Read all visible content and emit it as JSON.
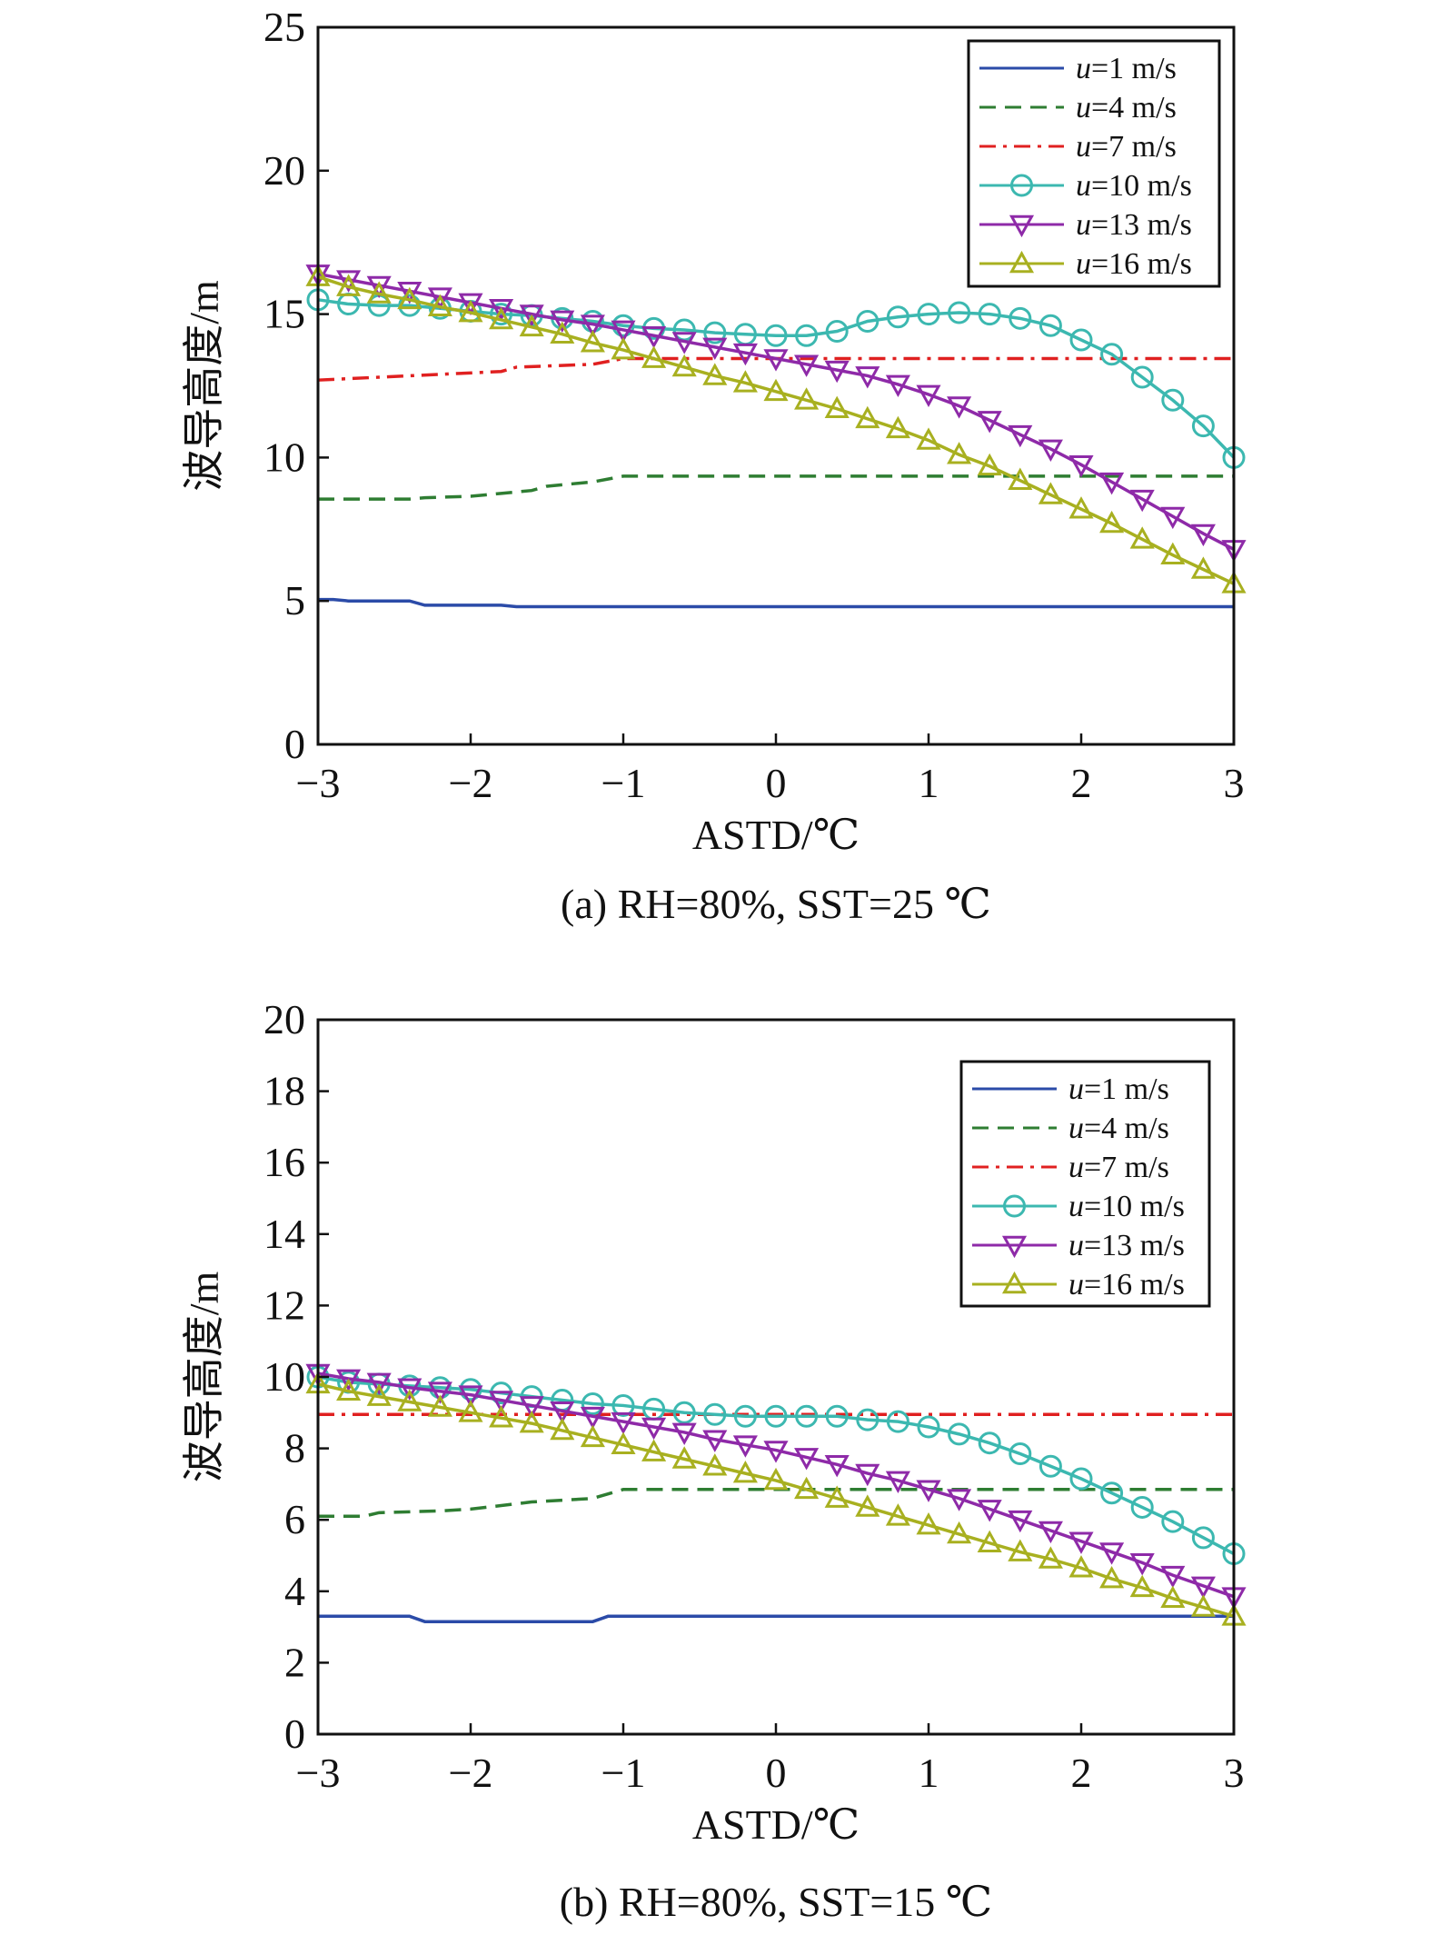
{
  "chart_data": [
    {
      "type": "line",
      "caption": "(a) RH=80%, SST=25 ℃",
      "xlabel": "ASTD/℃",
      "ylabel": "波导高度/m",
      "xlim": [
        -3,
        3
      ],
      "ylim": [
        0,
        25
      ],
      "xticks": [
        "−3",
        "−2",
        "−1",
        "0",
        "1",
        "2",
        "3"
      ],
      "yticks": [
        "0",
        "5",
        "10",
        "15",
        "20",
        "25"
      ],
      "ytick_values": [
        0,
        5,
        10,
        15,
        20,
        25
      ],
      "grid": false,
      "legend_position": "top-right",
      "series": [
        {
          "name_italic": "u",
          "name": "=1 m/s",
          "color": "#2b4ba8",
          "style": "solid",
          "marker": "none",
          "x": [
            -3,
            -2.9,
            -2.8,
            -2.4,
            -2.3,
            -1.8,
            -1.7,
            3
          ],
          "y": [
            5.05,
            5.05,
            5.0,
            5.0,
            4.85,
            4.85,
            4.8,
            4.8
          ]
        },
        {
          "name_italic": "u",
          "name": "=4 m/s",
          "color": "#2e7d32",
          "style": "dashed",
          "marker": "none",
          "x": [
            -3,
            -2.4,
            -2.3,
            -2,
            -1.8,
            -1.6,
            -1.5,
            -1.2,
            -1,
            3
          ],
          "y": [
            8.55,
            8.55,
            8.6,
            8.65,
            8.75,
            8.85,
            9.0,
            9.15,
            9.35,
            9.35
          ]
        },
        {
          "name_italic": "u",
          "name": "=7 m/s",
          "color": "#e02020",
          "style": "dashdot",
          "marker": "none",
          "x": [
            -3,
            -2.6,
            -2.2,
            -1.8,
            -1.7,
            -1.2,
            -1,
            3
          ],
          "y": [
            12.7,
            12.8,
            12.9,
            13.0,
            13.15,
            13.25,
            13.45,
            13.45
          ]
        },
        {
          "name_italic": "u",
          "name": "=10 m/s",
          "color": "#3cb8b0",
          "style": "solid",
          "marker": "circle",
          "x": [
            -3,
            -2.8,
            -2.6,
            -2.4,
            -2.2,
            -2,
            -1.8,
            -1.6,
            -1.4,
            -1.2,
            -1,
            -0.8,
            -0.6,
            -0.4,
            -0.2,
            0,
            0.2,
            0.4,
            0.6,
            0.8,
            1,
            1.2,
            1.4,
            1.6,
            1.8,
            2,
            2.2,
            2.4,
            2.6,
            2.8,
            3
          ],
          "y": [
            15.5,
            15.35,
            15.3,
            15.3,
            15.2,
            15.1,
            15.0,
            14.95,
            14.85,
            14.75,
            14.6,
            14.5,
            14.45,
            14.35,
            14.3,
            14.25,
            14.25,
            14.4,
            14.75,
            14.9,
            15.0,
            15.05,
            15.0,
            14.85,
            14.6,
            14.1,
            13.6,
            12.8,
            12.0,
            11.1,
            10.0
          ]
        },
        {
          "name_italic": "u",
          "name": "=13 m/s",
          "color": "#8e2aa8",
          "style": "solid",
          "marker": "triangle-down",
          "x": [
            -3,
            -2.8,
            -2.6,
            -2.4,
            -2.2,
            -2,
            -1.8,
            -1.6,
            -1.4,
            -1.2,
            -1,
            -0.8,
            -0.6,
            -0.4,
            -0.2,
            0,
            0.2,
            0.4,
            0.6,
            0.8,
            1,
            1.2,
            1.4,
            1.6,
            1.8,
            2,
            2.2,
            2.4,
            2.6,
            2.8,
            3
          ],
          "y": [
            16.4,
            16.2,
            16.0,
            15.8,
            15.6,
            15.4,
            15.2,
            15.0,
            14.8,
            14.65,
            14.45,
            14.25,
            14.05,
            13.85,
            13.65,
            13.45,
            13.25,
            13.05,
            12.85,
            12.55,
            12.2,
            11.8,
            11.3,
            10.8,
            10.3,
            9.75,
            9.15,
            8.55,
            7.95,
            7.35,
            6.8
          ]
        },
        {
          "name_italic": "u",
          "name": "=16 m/s",
          "color": "#a8b020",
          "style": "solid",
          "marker": "triangle-up",
          "x": [
            -3,
            -2.8,
            -2.6,
            -2.4,
            -2.2,
            -2,
            -1.8,
            -1.6,
            -1.4,
            -1.2,
            -1,
            -0.8,
            -0.6,
            -0.4,
            -0.2,
            0,
            0.2,
            0.4,
            0.6,
            0.8,
            1,
            1.2,
            1.4,
            1.6,
            1.8,
            2,
            2.2,
            2.4,
            2.6,
            2.8,
            3
          ],
          "y": [
            16.3,
            15.95,
            15.7,
            15.5,
            15.25,
            15.05,
            14.8,
            14.55,
            14.3,
            14.0,
            13.75,
            13.45,
            13.15,
            12.85,
            12.6,
            12.3,
            12.0,
            11.7,
            11.35,
            11.0,
            10.6,
            10.1,
            9.7,
            9.2,
            8.7,
            8.2,
            7.7,
            7.15,
            6.6,
            6.1,
            5.6
          ]
        }
      ]
    },
    {
      "type": "line",
      "caption": "(b) RH=80%, SST=15 ℃",
      "xlabel": "ASTD/℃",
      "ylabel": "波导高度/m",
      "xlim": [
        -3,
        3
      ],
      "ylim": [
        0,
        20
      ],
      "xticks": [
        "−3",
        "−2",
        "−1",
        "0",
        "1",
        "2",
        "3"
      ],
      "yticks": [
        "0",
        "2",
        "4",
        "6",
        "8",
        "10",
        "12",
        "14",
        "16",
        "18",
        "20"
      ],
      "ytick_values": [
        0,
        2,
        4,
        6,
        8,
        10,
        12,
        14,
        16,
        18,
        20
      ],
      "grid": false,
      "legend_position": "top-right",
      "series": [
        {
          "name_italic": "u",
          "name": "=1 m/s",
          "color": "#2b4ba8",
          "style": "solid",
          "marker": "none",
          "x": [
            -3,
            -2.4,
            -2.3,
            -1.2,
            -1.1,
            3
          ],
          "y": [
            3.3,
            3.3,
            3.15,
            3.15,
            3.3,
            3.3
          ]
        },
        {
          "name_italic": "u",
          "name": "=4 m/s",
          "color": "#2e7d32",
          "style": "dashed",
          "marker": "none",
          "x": [
            -3,
            -2.7,
            -2.6,
            -2.2,
            -2,
            -1.8,
            -1.6,
            -1.2,
            -1,
            3
          ],
          "y": [
            6.1,
            6.1,
            6.2,
            6.25,
            6.3,
            6.4,
            6.5,
            6.6,
            6.85,
            6.85
          ]
        },
        {
          "name_italic": "u",
          "name": "=7 m/s",
          "color": "#e02020",
          "style": "dashdot",
          "marker": "none",
          "x": [
            -3,
            3
          ],
          "y": [
            8.95,
            8.95
          ]
        },
        {
          "name_italic": "u",
          "name": "=10 m/s",
          "color": "#3cb8b0",
          "style": "solid",
          "marker": "circle",
          "x": [
            -3,
            -2.8,
            -2.6,
            -2.4,
            -2.2,
            -2,
            -1.8,
            -1.6,
            -1.4,
            -1.2,
            -1,
            -0.8,
            -0.6,
            -0.4,
            -0.2,
            0,
            0.2,
            0.4,
            0.6,
            0.8,
            1,
            1.2,
            1.4,
            1.6,
            1.8,
            2,
            2.2,
            2.4,
            2.6,
            2.8,
            3
          ],
          "y": [
            10.0,
            9.85,
            9.8,
            9.75,
            9.7,
            9.65,
            9.55,
            9.45,
            9.35,
            9.25,
            9.2,
            9.1,
            9.0,
            8.95,
            8.9,
            8.9,
            8.9,
            8.9,
            8.8,
            8.75,
            8.6,
            8.4,
            8.15,
            7.85,
            7.5,
            7.15,
            6.75,
            6.35,
            5.95,
            5.5,
            5.05
          ]
        },
        {
          "name_italic": "u",
          "name": "=13 m/s",
          "color": "#8e2aa8",
          "style": "solid",
          "marker": "triangle-down",
          "x": [
            -3,
            -2.8,
            -2.6,
            -2.4,
            -2.2,
            -2,
            -1.8,
            -1.6,
            -1.4,
            -1.2,
            -1,
            -0.8,
            -0.6,
            -0.4,
            -0.2,
            0,
            0.2,
            0.4,
            0.6,
            0.8,
            1,
            1.2,
            1.4,
            1.6,
            1.8,
            2,
            2.2,
            2.4,
            2.6,
            2.8,
            3
          ],
          "y": [
            10.1,
            9.95,
            9.85,
            9.7,
            9.6,
            9.5,
            9.35,
            9.2,
            9.05,
            8.9,
            8.75,
            8.6,
            8.45,
            8.25,
            8.1,
            7.95,
            7.75,
            7.55,
            7.3,
            7.1,
            6.85,
            6.6,
            6.3,
            6.0,
            5.7,
            5.4,
            5.1,
            4.8,
            4.45,
            4.15,
            3.85
          ]
        },
        {
          "name_italic": "u",
          "name": "=16 m/s",
          "color": "#a8b020",
          "style": "solid",
          "marker": "triangle-up",
          "x": [
            -3,
            -2.8,
            -2.6,
            -2.4,
            -2.2,
            -2,
            -1.8,
            -1.6,
            -1.4,
            -1.2,
            -1,
            -0.8,
            -0.6,
            -0.4,
            -0.2,
            0,
            0.2,
            0.4,
            0.6,
            0.8,
            1,
            1.2,
            1.4,
            1.6,
            1.8,
            2,
            2.2,
            2.4,
            2.6,
            2.8,
            3
          ],
          "y": [
            9.8,
            9.6,
            9.45,
            9.3,
            9.15,
            9.0,
            8.85,
            8.7,
            8.5,
            8.3,
            8.1,
            7.9,
            7.7,
            7.5,
            7.3,
            7.1,
            6.85,
            6.6,
            6.35,
            6.1,
            5.85,
            5.6,
            5.35,
            5.1,
            4.9,
            4.65,
            4.35,
            4.1,
            3.8,
            3.55,
            3.3
          ]
        }
      ]
    }
  ]
}
